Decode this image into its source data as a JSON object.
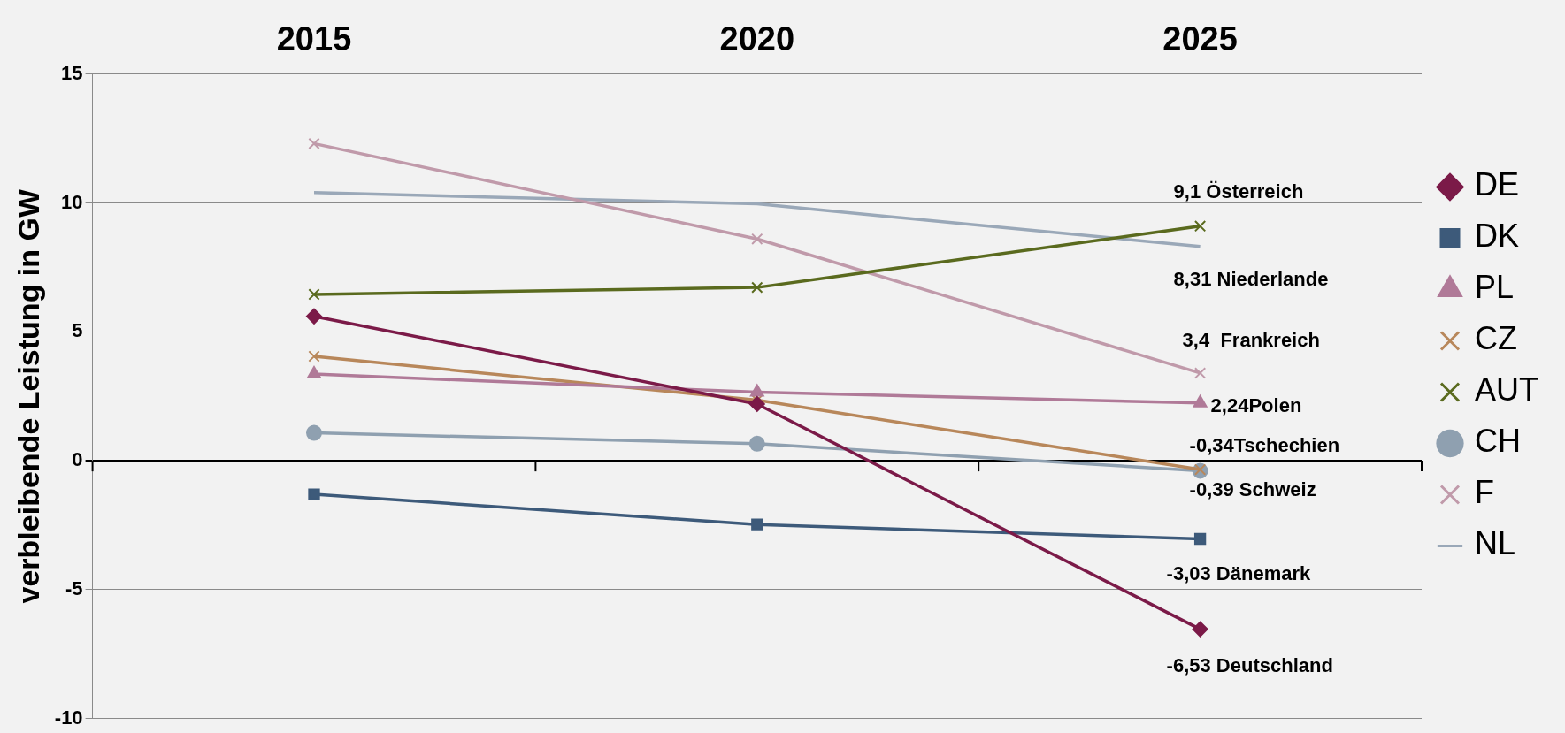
{
  "chart_data": {
    "type": "line",
    "ylabel": "verbleibende Leistung in GW",
    "categories": [
      "2015",
      "2020",
      "2025"
    ],
    "series": [
      {
        "name": "DE",
        "color": "#7b1a48",
        "marker": "diamond",
        "values": [
          5.6,
          2.2,
          -6.53
        ]
      },
      {
        "name": "DK",
        "color": "#3d5a7a",
        "marker": "square",
        "values": [
          -1.3,
          -2.47,
          -3.03
        ]
      },
      {
        "name": "PL",
        "color": "#b07a98",
        "marker": "triangle",
        "values": [
          3.36,
          2.66,
          2.24
        ]
      },
      {
        "name": "CZ",
        "color": "#b8875a",
        "marker": "cross",
        "values": [
          4.05,
          2.35,
          -0.34
        ]
      },
      {
        "name": "AUT",
        "color": "#5a6a1e",
        "marker": "cross",
        "values": [
          6.45,
          6.72,
          9.1
        ]
      },
      {
        "name": "CH",
        "color": "#8fa0b0",
        "marker": "circle",
        "values": [
          1.08,
          0.66,
          -0.39
        ]
      },
      {
        "name": "F",
        "color": "#c09aaa",
        "marker": "cross",
        "values": [
          12.3,
          8.6,
          3.4
        ]
      },
      {
        "name": "NL",
        "color": "#9aa8b8",
        "marker": "none",
        "values": [
          10.4,
          9.96,
          8.31
        ]
      }
    ],
    "ylim": [
      -10,
      15
    ],
    "yticks": [
      -10,
      -5,
      0,
      5,
      10,
      15
    ],
    "grid": "y",
    "legend": "right",
    "annotations": [
      {
        "text": "9,1 Österreich",
        "x": "2025",
        "y": 9.1
      },
      {
        "text": "8,31 Niederlande",
        "x": "2025",
        "y": 8.31
      },
      {
        "text": "3,4  Frankreich",
        "x": "2025",
        "y": 3.4
      },
      {
        "text": "2,24Polen",
        "x": "2025",
        "y": 2.24
      },
      {
        "text": "-0,34Tschechien",
        "x": "2025",
        "y": -0.34
      },
      {
        "text": "-0,39 Schweiz",
        "x": "2025",
        "y": -0.39
      },
      {
        "text": "-3,03 Dänemark",
        "x": "2025",
        "y": -3.03
      },
      {
        "text": "-6,53 Deutschland",
        "x": "2025",
        "y": -6.53
      }
    ]
  }
}
